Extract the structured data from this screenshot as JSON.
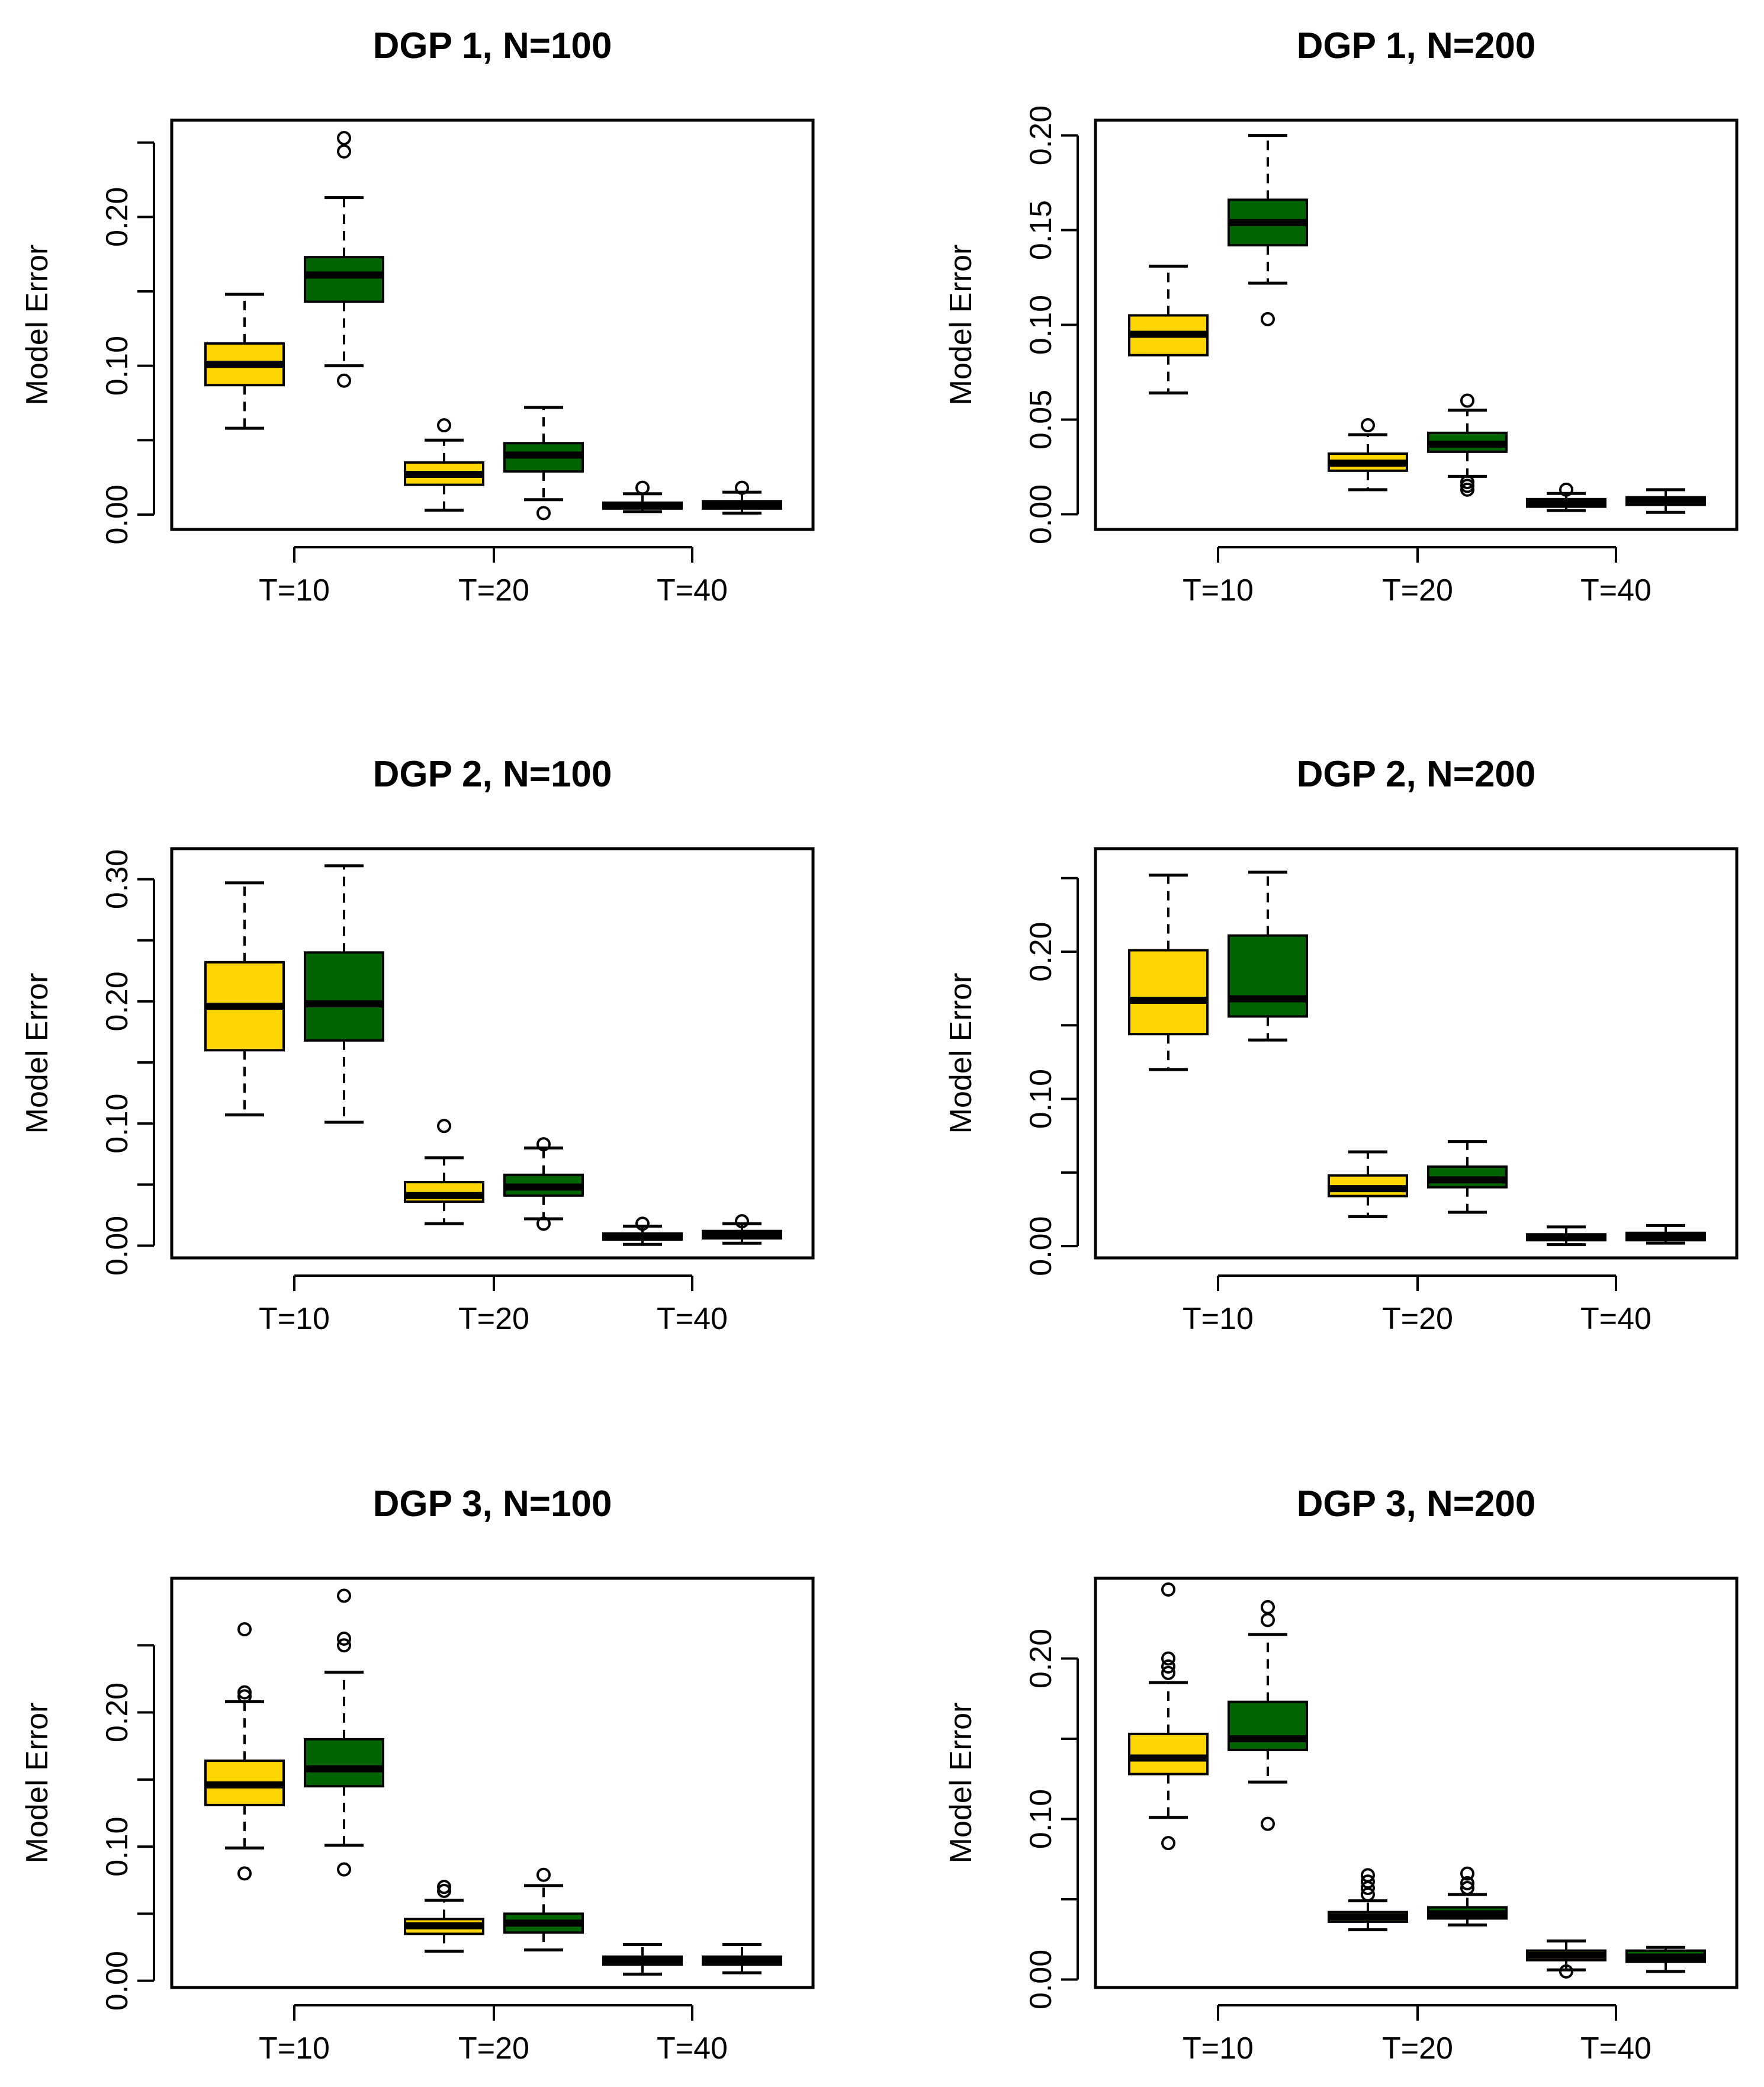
{
  "colors": {
    "method_a": "#FFD700",
    "method_b": "#006400",
    "ink": "#000000",
    "background": "#FFFFFF"
  },
  "chart_data": [
    {
      "type": "box",
      "title": "DGP 1, N=100",
      "ylabel": "Model Error",
      "ylim": [
        -0.01,
        0.265
      ],
      "yticks": [
        0.0,
        0.05,
        0.1,
        0.15,
        0.2,
        0.25
      ],
      "ytick_labels": [
        "0.00",
        "",
        "0.10",
        "",
        "0.20",
        ""
      ],
      "categories": [
        "T=10",
        "T=20",
        "T=40"
      ],
      "boxes": [
        {
          "category": "T=10",
          "series": "A",
          "min": 0.058,
          "q1": 0.087,
          "median": 0.101,
          "q3": 0.115,
          "max": 0.148,
          "outliers": []
        },
        {
          "category": "T=10",
          "series": "B",
          "min": 0.1,
          "q1": 0.143,
          "median": 0.161,
          "q3": 0.173,
          "max": 0.213,
          "outliers": [
            0.09,
            0.244,
            0.253
          ]
        },
        {
          "category": "T=20",
          "series": "A",
          "min": 0.003,
          "q1": 0.02,
          "median": 0.027,
          "q3": 0.035,
          "max": 0.05,
          "outliers": [
            0.06
          ]
        },
        {
          "category": "T=20",
          "series": "B",
          "min": 0.01,
          "q1": 0.029,
          "median": 0.04,
          "q3": 0.048,
          "max": 0.072,
          "outliers": [
            0.001
          ]
        },
        {
          "category": "T=40",
          "series": "A",
          "min": 0.002,
          "q1": 0.004,
          "median": 0.006,
          "q3": 0.008,
          "max": 0.014,
          "outliers": [
            0.018
          ]
        },
        {
          "category": "T=40",
          "series": "B",
          "min": 0.001,
          "q1": 0.004,
          "median": 0.007,
          "q3": 0.009,
          "max": 0.015,
          "outliers": [
            0.018
          ]
        }
      ]
    },
    {
      "type": "box",
      "title": "DGP 1, N=200",
      "ylabel": "Model Error",
      "ylim": [
        -0.008,
        0.208
      ],
      "yticks": [
        0.0,
        0.05,
        0.1,
        0.15,
        0.2
      ],
      "ytick_labels": [
        "0.00",
        "0.05",
        "0.10",
        "0.15",
        "0.20"
      ],
      "categories": [
        "T=10",
        "T=20",
        "T=40"
      ],
      "boxes": [
        {
          "category": "T=10",
          "series": "A",
          "min": 0.064,
          "q1": 0.084,
          "median": 0.095,
          "q3": 0.105,
          "max": 0.131,
          "outliers": []
        },
        {
          "category": "T=10",
          "series": "B",
          "min": 0.122,
          "q1": 0.142,
          "median": 0.154,
          "q3": 0.166,
          "max": 0.2,
          "outliers": [
            0.103
          ]
        },
        {
          "category": "T=20",
          "series": "A",
          "min": 0.013,
          "q1": 0.023,
          "median": 0.027,
          "q3": 0.032,
          "max": 0.042,
          "outliers": [
            0.047
          ]
        },
        {
          "category": "T=20",
          "series": "B",
          "min": 0.02,
          "q1": 0.033,
          "median": 0.037,
          "q3": 0.043,
          "max": 0.055,
          "outliers": [
            0.06,
            0.017,
            0.015,
            0.013
          ]
        },
        {
          "category": "T=40",
          "series": "A",
          "min": 0.002,
          "q1": 0.004,
          "median": 0.006,
          "q3": 0.008,
          "max": 0.011,
          "outliers": [
            0.013
          ]
        },
        {
          "category": "T=40",
          "series": "B",
          "min": 0.001,
          "q1": 0.005,
          "median": 0.007,
          "q3": 0.009,
          "max": 0.013,
          "outliers": []
        }
      ]
    },
    {
      "type": "box",
      "title": "DGP 2, N=100",
      "ylabel": "Model Error",
      "ylim": [
        -0.01,
        0.325
      ],
      "yticks": [
        0.0,
        0.05,
        0.1,
        0.15,
        0.2,
        0.25,
        0.3
      ],
      "ytick_labels": [
        "0.00",
        "",
        "0.10",
        "",
        "0.20",
        "",
        "0.30"
      ],
      "categories": [
        "T=10",
        "T=20",
        "T=40"
      ],
      "boxes": [
        {
          "category": "T=10",
          "series": "A",
          "min": 0.107,
          "q1": 0.16,
          "median": 0.196,
          "q3": 0.232,
          "max": 0.297,
          "outliers": []
        },
        {
          "category": "T=10",
          "series": "B",
          "min": 0.101,
          "q1": 0.168,
          "median": 0.198,
          "q3": 0.24,
          "max": 0.311,
          "outliers": []
        },
        {
          "category": "T=20",
          "series": "A",
          "min": 0.018,
          "q1": 0.036,
          "median": 0.041,
          "q3": 0.052,
          "max": 0.072,
          "outliers": [
            0.098
          ]
        },
        {
          "category": "T=20",
          "series": "B",
          "min": 0.022,
          "q1": 0.041,
          "median": 0.048,
          "q3": 0.058,
          "max": 0.08,
          "outliers": [
            0.083,
            0.018
          ]
        },
        {
          "category": "T=40",
          "series": "A",
          "min": 0.001,
          "q1": 0.005,
          "median": 0.007,
          "q3": 0.01,
          "max": 0.016,
          "outliers": [
            0.018
          ]
        },
        {
          "category": "T=40",
          "series": "B",
          "min": 0.002,
          "q1": 0.006,
          "median": 0.009,
          "q3": 0.012,
          "max": 0.018,
          "outliers": [
            0.02
          ]
        }
      ]
    },
    {
      "type": "box",
      "title": "DGP 2, N=200",
      "ylabel": "Model Error",
      "ylim": [
        -0.008,
        0.27
      ],
      "yticks": [
        0.0,
        0.05,
        0.1,
        0.15,
        0.2,
        0.25
      ],
      "ytick_labels": [
        "0.00",
        "",
        "0.10",
        "",
        "0.20",
        ""
      ],
      "categories": [
        "T=10",
        "T=20",
        "T=40"
      ],
      "boxes": [
        {
          "category": "T=10",
          "series": "A",
          "min": 0.12,
          "q1": 0.144,
          "median": 0.167,
          "q3": 0.201,
          "max": 0.252,
          "outliers": []
        },
        {
          "category": "T=10",
          "series": "B",
          "min": 0.14,
          "q1": 0.156,
          "median": 0.168,
          "q3": 0.211,
          "max": 0.254,
          "outliers": []
        },
        {
          "category": "T=20",
          "series": "A",
          "min": 0.02,
          "q1": 0.034,
          "median": 0.039,
          "q3": 0.048,
          "max": 0.064,
          "outliers": []
        },
        {
          "category": "T=20",
          "series": "B",
          "min": 0.023,
          "q1": 0.04,
          "median": 0.045,
          "q3": 0.054,
          "max": 0.071,
          "outliers": []
        },
        {
          "category": "T=40",
          "series": "A",
          "min": 0.001,
          "q1": 0.004,
          "median": 0.006,
          "q3": 0.008,
          "max": 0.013,
          "outliers": []
        },
        {
          "category": "T=40",
          "series": "B",
          "min": 0.002,
          "q1": 0.004,
          "median": 0.007,
          "q3": 0.009,
          "max": 0.014,
          "outliers": []
        }
      ]
    },
    {
      "type": "box",
      "title": "DGP 3, N=100",
      "ylabel": "Model Error",
      "ylim": [
        -0.005,
        0.3
      ],
      "yticks": [
        0.0,
        0.05,
        0.1,
        0.15,
        0.2,
        0.25
      ],
      "ytick_labels": [
        "0.00",
        "",
        "0.10",
        "",
        "0.20",
        ""
      ],
      "categories": [
        "T=10",
        "T=20",
        "T=40"
      ],
      "boxes": [
        {
          "category": "T=10",
          "series": "A",
          "min": 0.099,
          "q1": 0.131,
          "median": 0.146,
          "q3": 0.164,
          "max": 0.208,
          "outliers": [
            0.08,
            0.212,
            0.215,
            0.262
          ]
        },
        {
          "category": "T=10",
          "series": "B",
          "min": 0.101,
          "q1": 0.145,
          "median": 0.158,
          "q3": 0.18,
          "max": 0.23,
          "outliers": [
            0.083,
            0.25,
            0.255,
            0.287
          ]
        },
        {
          "category": "T=20",
          "series": "A",
          "min": 0.022,
          "q1": 0.035,
          "median": 0.041,
          "q3": 0.046,
          "max": 0.06,
          "outliers": [
            0.067,
            0.07
          ]
        },
        {
          "category": "T=20",
          "series": "B",
          "min": 0.023,
          "q1": 0.036,
          "median": 0.043,
          "q3": 0.05,
          "max": 0.071,
          "outliers": [
            0.079
          ]
        },
        {
          "category": "T=40",
          "series": "A",
          "min": 0.005,
          "q1": 0.012,
          "median": 0.015,
          "q3": 0.018,
          "max": 0.027,
          "outliers": []
        },
        {
          "category": "T=40",
          "series": "B",
          "min": 0.006,
          "q1": 0.012,
          "median": 0.015,
          "q3": 0.018,
          "max": 0.027,
          "outliers": []
        }
      ]
    },
    {
      "type": "box",
      "title": "DGP 3, N=200",
      "ylabel": "Model Error",
      "ylim": [
        -0.005,
        0.25
      ],
      "yticks": [
        0.0,
        0.05,
        0.1,
        0.15,
        0.2
      ],
      "ytick_labels": [
        "0.00",
        "",
        "0.10",
        "",
        "0.20"
      ],
      "categories": [
        "T=10",
        "T=20",
        "T=40"
      ],
      "boxes": [
        {
          "category": "T=10",
          "series": "A",
          "min": 0.101,
          "q1": 0.128,
          "median": 0.138,
          "q3": 0.153,
          "max": 0.185,
          "outliers": [
            0.085,
            0.191,
            0.195,
            0.2,
            0.243
          ]
        },
        {
          "category": "T=10",
          "series": "B",
          "min": 0.123,
          "q1": 0.143,
          "median": 0.15,
          "q3": 0.173,
          "max": 0.215,
          "outliers": [
            0.097,
            0.224,
            0.232
          ]
        },
        {
          "category": "T=20",
          "series": "A",
          "min": 0.031,
          "q1": 0.036,
          "median": 0.039,
          "q3": 0.042,
          "max": 0.049,
          "outliers": [
            0.053,
            0.057,
            0.061,
            0.065
          ]
        },
        {
          "category": "T=20",
          "series": "B",
          "min": 0.034,
          "q1": 0.038,
          "median": 0.041,
          "q3": 0.045,
          "max": 0.053,
          "outliers": [
            0.057,
            0.06,
            0.066
          ]
        },
        {
          "category": "T=40",
          "series": "A",
          "min": 0.006,
          "q1": 0.012,
          "median": 0.015,
          "q3": 0.018,
          "max": 0.024,
          "outliers": [
            0.005
          ]
        },
        {
          "category": "T=40",
          "series": "B",
          "min": 0.005,
          "q1": 0.011,
          "median": 0.014,
          "q3": 0.018,
          "max": 0.02,
          "outliers": []
        }
      ]
    }
  ]
}
